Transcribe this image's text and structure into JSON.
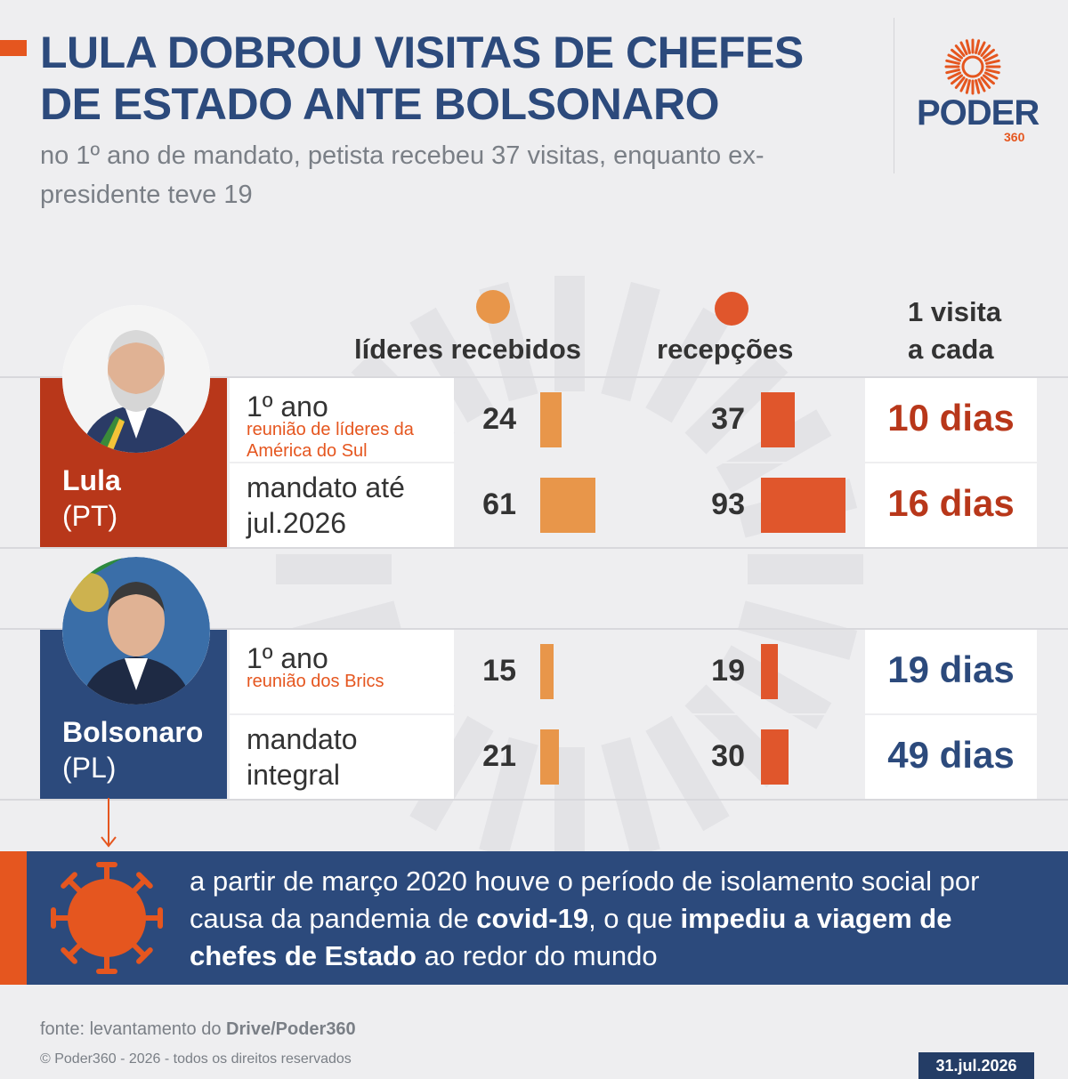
{
  "header": {
    "title": "LULA DOBROU VISITAS DE CHEFES DE ESTADO ANTE BOLSONARO",
    "subtitle": "no 1º ano de mandato, petista recebeu 37 visitas, enquanto ex-presidente teve 19",
    "logo_word": "PODER",
    "logo_number": "360"
  },
  "colors": {
    "title_blue": "#2c4a7c",
    "accent_orange": "#e5561f",
    "lula_red": "#b8371a",
    "bolsonaro_blue": "#2c4a7c",
    "bar_leaders": "#e8964a",
    "bar_receptions": "#e0562c"
  },
  "chart_data": {
    "type": "table",
    "columns": {
      "leaders": "líderes recebidos",
      "receptions": "recepções",
      "interval": "1 visita a cada"
    },
    "rows": [
      {
        "president": "Lula",
        "party": "(PT)",
        "periods": [
          {
            "period": "1º ano",
            "note": "reunião de líderes da América do Sul",
            "leaders": 24,
            "receptions": 37,
            "interval": "10 dias"
          },
          {
            "period": "mandato até jul.2026",
            "note": "",
            "leaders": 61,
            "receptions": 93,
            "interval": "16 dias"
          }
        ]
      },
      {
        "president": "Bolsonaro",
        "party": "(PL)",
        "periods": [
          {
            "period": "1º ano",
            "note": "reunião dos Brics",
            "leaders": 15,
            "receptions": 19,
            "interval": "19 dias"
          },
          {
            "period": "mandato integral",
            "note": "",
            "leaders": 21,
            "receptions": 30,
            "interval": "49 dias"
          }
        ]
      }
    ]
  },
  "covid_note": {
    "part1": "a partir de março 2020 houve o período de isolamento social por causa da pandemia de ",
    "bold1": "covid-19",
    "part2": ", o que ",
    "bold2": "impediu a viagem de chefes de Estado",
    "part3": " ao redor do mundo"
  },
  "footer": {
    "source_prefix": "fonte: levantamento do ",
    "source_bold": "Drive/Poder360",
    "copyright": "© Poder360 - 2026 - todos os direitos reservados",
    "date": "31.jul.2026"
  }
}
